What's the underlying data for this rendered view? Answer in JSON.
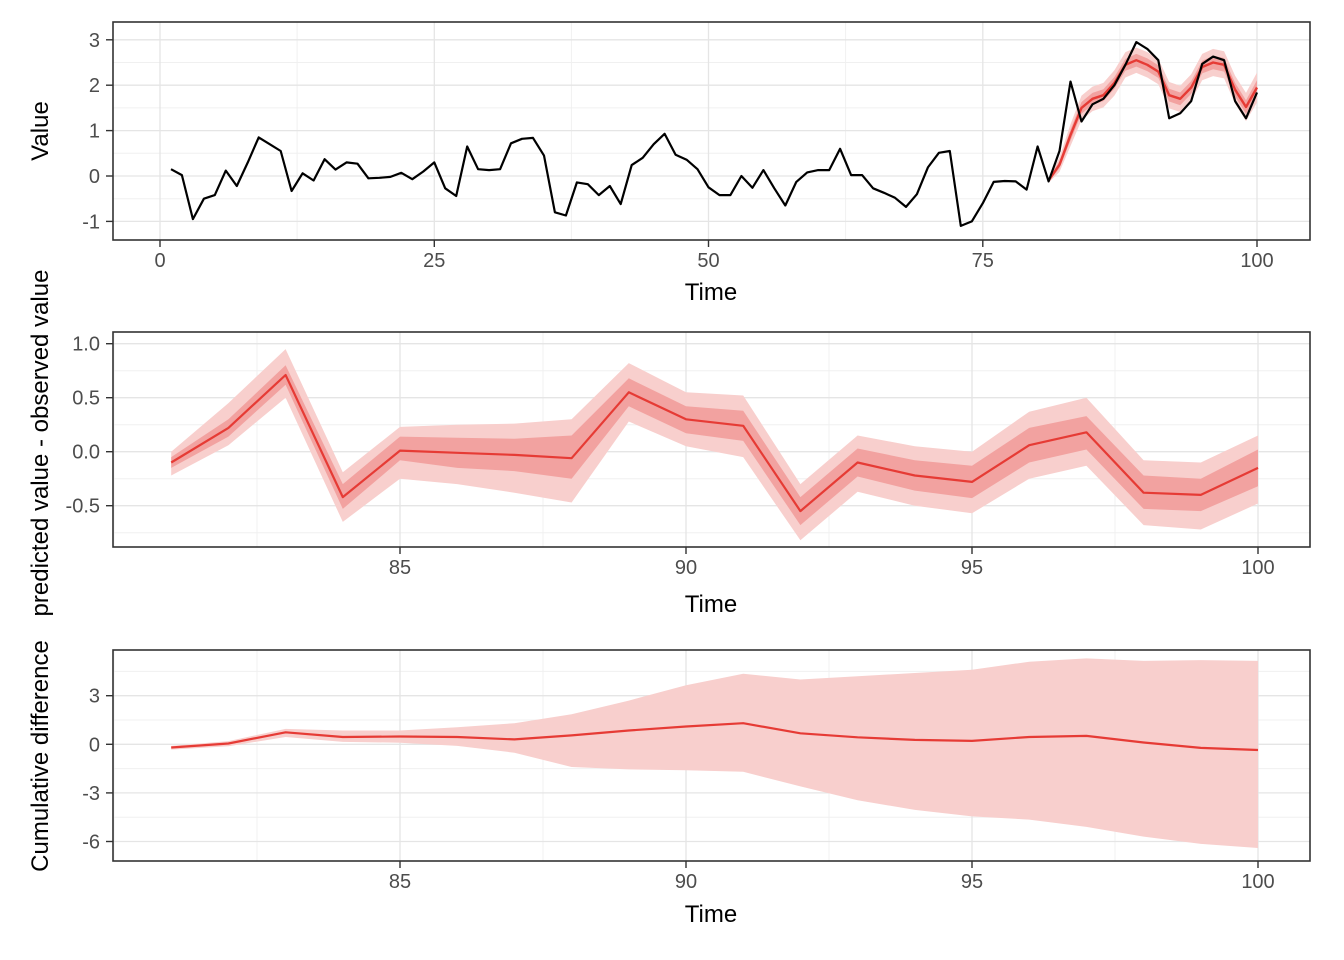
{
  "figure": {
    "background": "#ffffff"
  },
  "style": {
    "accent_red": "#e63b35",
    "observed_black": "#000000",
    "band_inner": "#f2a2a0",
    "band_outer": "#f8cfcd",
    "grid_major": "#e5e5e5",
    "grid_minor": "#f0f0f0",
    "panel_border": "#333333",
    "tick_mark": "#333333",
    "tick_text": "#4d4d4d",
    "axis_title_color": "#000000"
  },
  "chart_data": [
    {
      "type": "line",
      "title": "",
      "xlabel": "Time",
      "ylabel": "Value",
      "grid": true,
      "legend": "none",
      "xlim": [
        -4.3,
        104.8
      ],
      "ylim": [
        -1.41,
        3.39
      ],
      "x_tick_vals": [
        0,
        25,
        50,
        75,
        100
      ],
      "x_tick_labels": [
        "0",
        "25",
        "50",
        "75",
        "100"
      ],
      "x_minor": [
        12.5,
        37.5,
        62.5,
        87.5
      ],
      "y_tick_vals": [
        3,
        2,
        1,
        0,
        -1
      ],
      "y_tick_labels": [
        "3",
        "2",
        "1",
        "0",
        "-1"
      ],
      "y_minor": [
        2.5,
        1.5,
        0.5,
        -0.5
      ],
      "bands": [
        {
          "name": "prediction-interval-outer",
          "fill": "#f8cfcd",
          "x_start": 81,
          "upper": [
            -0.05,
            0.41,
            1.14,
            1.77,
            1.97,
            2.05,
            2.33,
            2.73,
            2.83,
            2.73,
            2.58,
            2.07,
            1.99,
            2.24,
            2.69,
            2.8,
            2.75,
            2.21,
            1.83,
            2.28
          ],
          "lower": [
            -0.15,
            0.09,
            0.66,
            1.23,
            1.43,
            1.51,
            1.77,
            2.17,
            2.27,
            2.17,
            2.02,
            1.49,
            1.41,
            1.66,
            2.11,
            2.2,
            2.15,
            1.59,
            1.21,
            1.62
          ]
        },
        {
          "name": "prediction-interval-inner",
          "fill": "#f2a2a0",
          "x_start": 81,
          "upper": [
            -0.07,
            0.33,
            1.02,
            1.63,
            1.83,
            1.91,
            2.18,
            2.58,
            2.69,
            2.59,
            2.44,
            1.92,
            1.84,
            2.09,
            2.54,
            2.65,
            2.6,
            2.05,
            1.67,
            2.11
          ],
          "lower": [
            -0.13,
            0.17,
            0.78,
            1.37,
            1.57,
            1.65,
            1.92,
            2.32,
            2.41,
            2.31,
            2.16,
            1.64,
            1.56,
            1.81,
            2.26,
            2.35,
            2.3,
            1.75,
            1.37,
            1.79
          ]
        }
      ],
      "series": [
        {
          "name": "predicted",
          "color": "#e63b35",
          "width": 2.4,
          "x_start": 81,
          "values": [
            -0.1,
            0.25,
            0.9,
            1.5,
            1.7,
            1.78,
            2.05,
            2.45,
            2.55,
            2.45,
            2.3,
            1.78,
            1.7,
            1.95,
            2.4,
            2.5,
            2.45,
            1.9,
            1.52,
            1.95
          ]
        },
        {
          "name": "observed",
          "color": "#000000",
          "width": 2.2,
          "x_start": 1,
          "values": [
            0.15,
            0.02,
            -0.95,
            -0.5,
            -0.42,
            0.12,
            -0.22,
            0.3,
            0.85,
            0.7,
            0.55,
            -0.33,
            0.06,
            -0.1,
            0.37,
            0.14,
            0.3,
            0.27,
            -0.05,
            -0.04,
            -0.02,
            0.07,
            -0.07,
            0.1,
            0.3,
            -0.27,
            -0.44,
            0.65,
            0.15,
            0.13,
            0.15,
            0.72,
            0.82,
            0.84,
            0.45,
            -0.8,
            -0.87,
            -0.14,
            -0.18,
            -0.42,
            -0.22,
            -0.62,
            0.24,
            0.4,
            0.7,
            0.93,
            0.47,
            0.36,
            0.15,
            -0.25,
            -0.42,
            -0.42,
            0.0,
            -0.26,
            0.13,
            -0.27,
            -0.65,
            -0.13,
            0.08,
            0.13,
            0.13,
            0.6,
            0.02,
            0.02,
            -0.27,
            -0.37,
            -0.48,
            -0.68,
            -0.4,
            0.19,
            0.51,
            0.55,
            -1.1,
            -1.0,
            -0.6,
            -0.13,
            -0.11,
            -0.12,
            -0.3,
            0.65,
            -0.12,
            0.55,
            2.08,
            1.2,
            1.58,
            1.7,
            2.0,
            2.45,
            2.95,
            2.8,
            2.55,
            1.27,
            1.38,
            1.65,
            2.47,
            2.63,
            2.55,
            1.65,
            1.27,
            1.84
          ]
        }
      ]
    },
    {
      "type": "line",
      "title": "",
      "xlabel": "Time",
      "ylabel": "predicted value - observed value",
      "grid": true,
      "legend": "none",
      "xlim": [
        79.98,
        100.93
      ],
      "ylim": [
        -0.88,
        1.11
      ],
      "x_tick_vals": [
        85,
        90,
        95,
        100
      ],
      "x_tick_labels": [
        "85",
        "90",
        "95",
        "100"
      ],
      "x_minor": [
        80,
        82.5,
        87.5,
        92.5,
        97.5
      ],
      "y_tick_vals": [
        1.0,
        0.5,
        0.0,
        -0.5
      ],
      "y_tick_labels": [
        "1.0",
        "0.5",
        "0.0",
        "-0.5"
      ],
      "y_minor": [
        0.75,
        0.25,
        -0.25,
        -0.75
      ],
      "bands": [
        {
          "name": "pointwise-interval-outer",
          "fill": "#f8cfcd",
          "x_start": 81,
          "upper": [
            0.0,
            0.45,
            0.95,
            -0.19,
            0.23,
            0.25,
            0.26,
            0.3,
            0.82,
            0.55,
            0.52,
            -0.3,
            0.15,
            0.05,
            0.0,
            0.37,
            0.5,
            -0.08,
            -0.1,
            0.15
          ],
          "lower": [
            -0.22,
            0.06,
            0.5,
            -0.65,
            -0.25,
            -0.3,
            -0.38,
            -0.47,
            0.28,
            0.05,
            -0.05,
            -0.82,
            -0.37,
            -0.5,
            -0.57,
            -0.25,
            -0.13,
            -0.68,
            -0.72,
            -0.48
          ]
        },
        {
          "name": "pointwise-interval-inner",
          "fill": "#f2a2a0",
          "x_start": 81,
          "upper": [
            -0.05,
            0.3,
            0.8,
            -0.3,
            0.14,
            0.13,
            0.12,
            0.15,
            0.68,
            0.42,
            0.38,
            -0.42,
            0.03,
            -0.08,
            -0.13,
            0.22,
            0.33,
            -0.22,
            -0.25,
            0.02
          ],
          "lower": [
            -0.15,
            0.14,
            0.62,
            -0.53,
            -0.08,
            -0.15,
            -0.18,
            -0.25,
            0.42,
            0.17,
            0.1,
            -0.68,
            -0.23,
            -0.36,
            -0.43,
            -0.1,
            0.02,
            -0.53,
            -0.55,
            -0.32
          ]
        }
      ],
      "series": [
        {
          "name": "pointwise-difference",
          "color": "#e63b35",
          "width": 2.2,
          "x_start": 81,
          "values": [
            -0.1,
            0.22,
            0.71,
            -0.42,
            0.01,
            -0.01,
            -0.03,
            -0.06,
            0.55,
            0.3,
            0.24,
            -0.55,
            -0.1,
            -0.22,
            -0.28,
            0.06,
            0.18,
            -0.38,
            -0.4,
            -0.15
          ]
        }
      ]
    },
    {
      "type": "line",
      "title": "",
      "xlabel": "Time",
      "ylabel": "Cumulative difference",
      "grid": true,
      "legend": "none",
      "xlim": [
        79.98,
        100.93
      ],
      "ylim": [
        -7.2,
        5.82
      ],
      "x_tick_vals": [
        85,
        90,
        95,
        100
      ],
      "x_tick_labels": [
        "85",
        "90",
        "95",
        "100"
      ],
      "x_minor": [
        80,
        82.5,
        87.5,
        92.5,
        97.5
      ],
      "y_tick_vals": [
        3,
        0,
        -3,
        -6
      ],
      "y_tick_labels": [
        "3",
        "0",
        "-3",
        "-6"
      ],
      "y_minor": [
        4.5,
        1.5,
        -1.5,
        -4.5
      ],
      "bands": [
        {
          "name": "cumulative-interval",
          "fill": "#f8cfcd",
          "x_start": 81,
          "upper": [
            -0.1,
            0.2,
            0.95,
            0.85,
            0.85,
            1.05,
            1.3,
            1.85,
            2.7,
            3.65,
            4.35,
            4.0,
            4.2,
            4.4,
            4.6,
            5.1,
            5.3,
            5.15,
            5.2,
            5.15
          ],
          "lower": [
            -0.33,
            -0.12,
            0.45,
            0.15,
            0.1,
            -0.1,
            -0.52,
            -1.4,
            -1.55,
            -1.6,
            -1.7,
            -2.6,
            -3.45,
            -4.05,
            -4.45,
            -4.65,
            -5.1,
            -5.7,
            -6.15,
            -6.4
          ]
        }
      ],
      "series": [
        {
          "name": "cumulative-difference",
          "color": "#e63b35",
          "width": 2.2,
          "x_start": 81,
          "values": [
            -0.2,
            0.05,
            0.74,
            0.45,
            0.48,
            0.45,
            0.3,
            0.55,
            0.85,
            1.1,
            1.3,
            0.68,
            0.43,
            0.27,
            0.21,
            0.45,
            0.52,
            0.11,
            -0.22,
            -0.35
          ]
        }
      ]
    }
  ]
}
